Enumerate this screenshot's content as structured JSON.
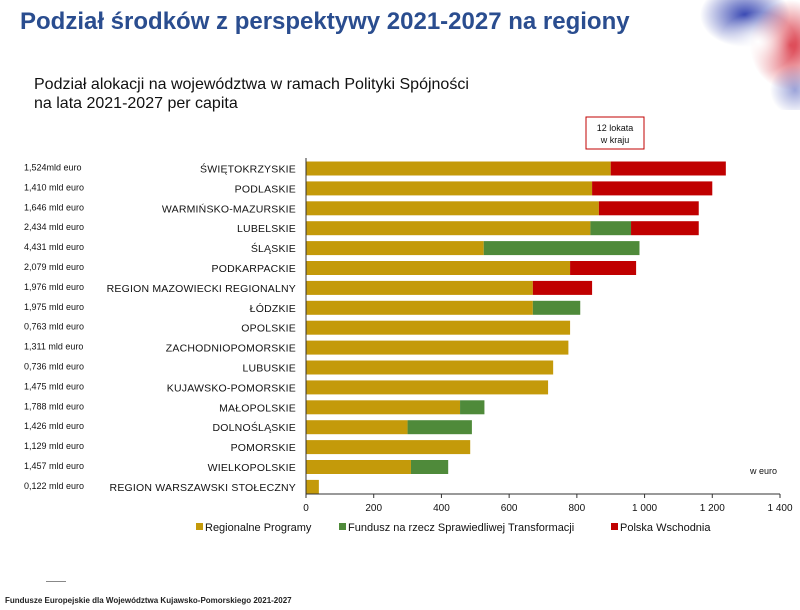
{
  "page": {
    "title": "Podział środków z perspektywy 2021-2027 na regiony",
    "subtitle_line1": "Podział alokacji na województwa w ramach Polityki Spójności",
    "subtitle_line2": "na lata 2021-2027 per capita",
    "footer": "Fundusze Europejskie dla Województwa Kujawsko-Pomorskiego 2021-2027"
  },
  "chart_data": {
    "type": "bar",
    "orientation": "horizontal",
    "stacked": true,
    "categories": [
      "ŚWIĘTOKRZYSKIE",
      "PODLASKIE",
      "WARMIŃSKO-MAZURSKIE",
      "LUBELSKIE",
      "ŚLĄSKIE",
      "PODKARPACKIE",
      "REGION MAZOWIECKI REGIONALNY",
      "ŁÓDZKIE",
      "OPOLSKIE",
      "ZACHODNIOPOMORSKIE",
      "LUBUSKIE",
      "KUJAWSKO-POMORSKIE",
      "MAŁOPOLSKIE",
      "DOLNOŚLĄSKIE",
      "POMORSKIE",
      "WIELKOPOLSKIE",
      "REGION WARSZAWSKI STOŁECZNY"
    ],
    "left_labels": [
      "1,524mld euro",
      "1,410 mld euro",
      "1,646 mld euro",
      "2,434 mld euro",
      "4,431 mld euro",
      "2,079 mld euro",
      "1,976 mld euro",
      "1,975 mld euro",
      "0,763 mld euro",
      "1,311 mld euro",
      "0,736 mld euro",
      "1,475 mld euro",
      "1,788 mld euro",
      "1,426 mld euro",
      "1,129 mld euro",
      "1,457 mld euro",
      "0,122 mld euro"
    ],
    "series": [
      {
        "name": "Regionalne Programy",
        "color": "#c49a0a",
        "values": [
          900,
          845,
          865,
          840,
          525,
          780,
          670,
          670,
          780,
          775,
          730,
          715,
          455,
          300,
          485,
          310,
          38
        ]
      },
      {
        "name": "Fundusz na rzecz Sprawiedliwej Transformacji",
        "color": "#4f8a3a",
        "values": [
          0,
          0,
          0,
          120,
          460,
          0,
          0,
          140,
          0,
          0,
          0,
          0,
          72,
          190,
          0,
          110,
          0
        ]
      },
      {
        "name": "Polska Wschodnia",
        "color": "#c00000",
        "values": [
          340,
          355,
          295,
          200,
          0,
          195,
          175,
          0,
          0,
          0,
          0,
          0,
          0,
          0,
          0,
          0,
          0
        ]
      }
    ],
    "xlim": [
      0,
      1400
    ],
    "xticks": [
      0,
      200,
      400,
      600,
      800,
      1000,
      1200,
      1400
    ],
    "xtick_labels": [
      "0",
      "200",
      "400",
      "600",
      "800",
      "1 000",
      "1 200",
      "1 400"
    ],
    "unit_label": "w euro",
    "annotation": "12 lokata w kraju",
    "legend_position": "bottom",
    "grid": false
  },
  "decoration": {
    "blue": "#2233aa",
    "red": "#d41a2a"
  }
}
